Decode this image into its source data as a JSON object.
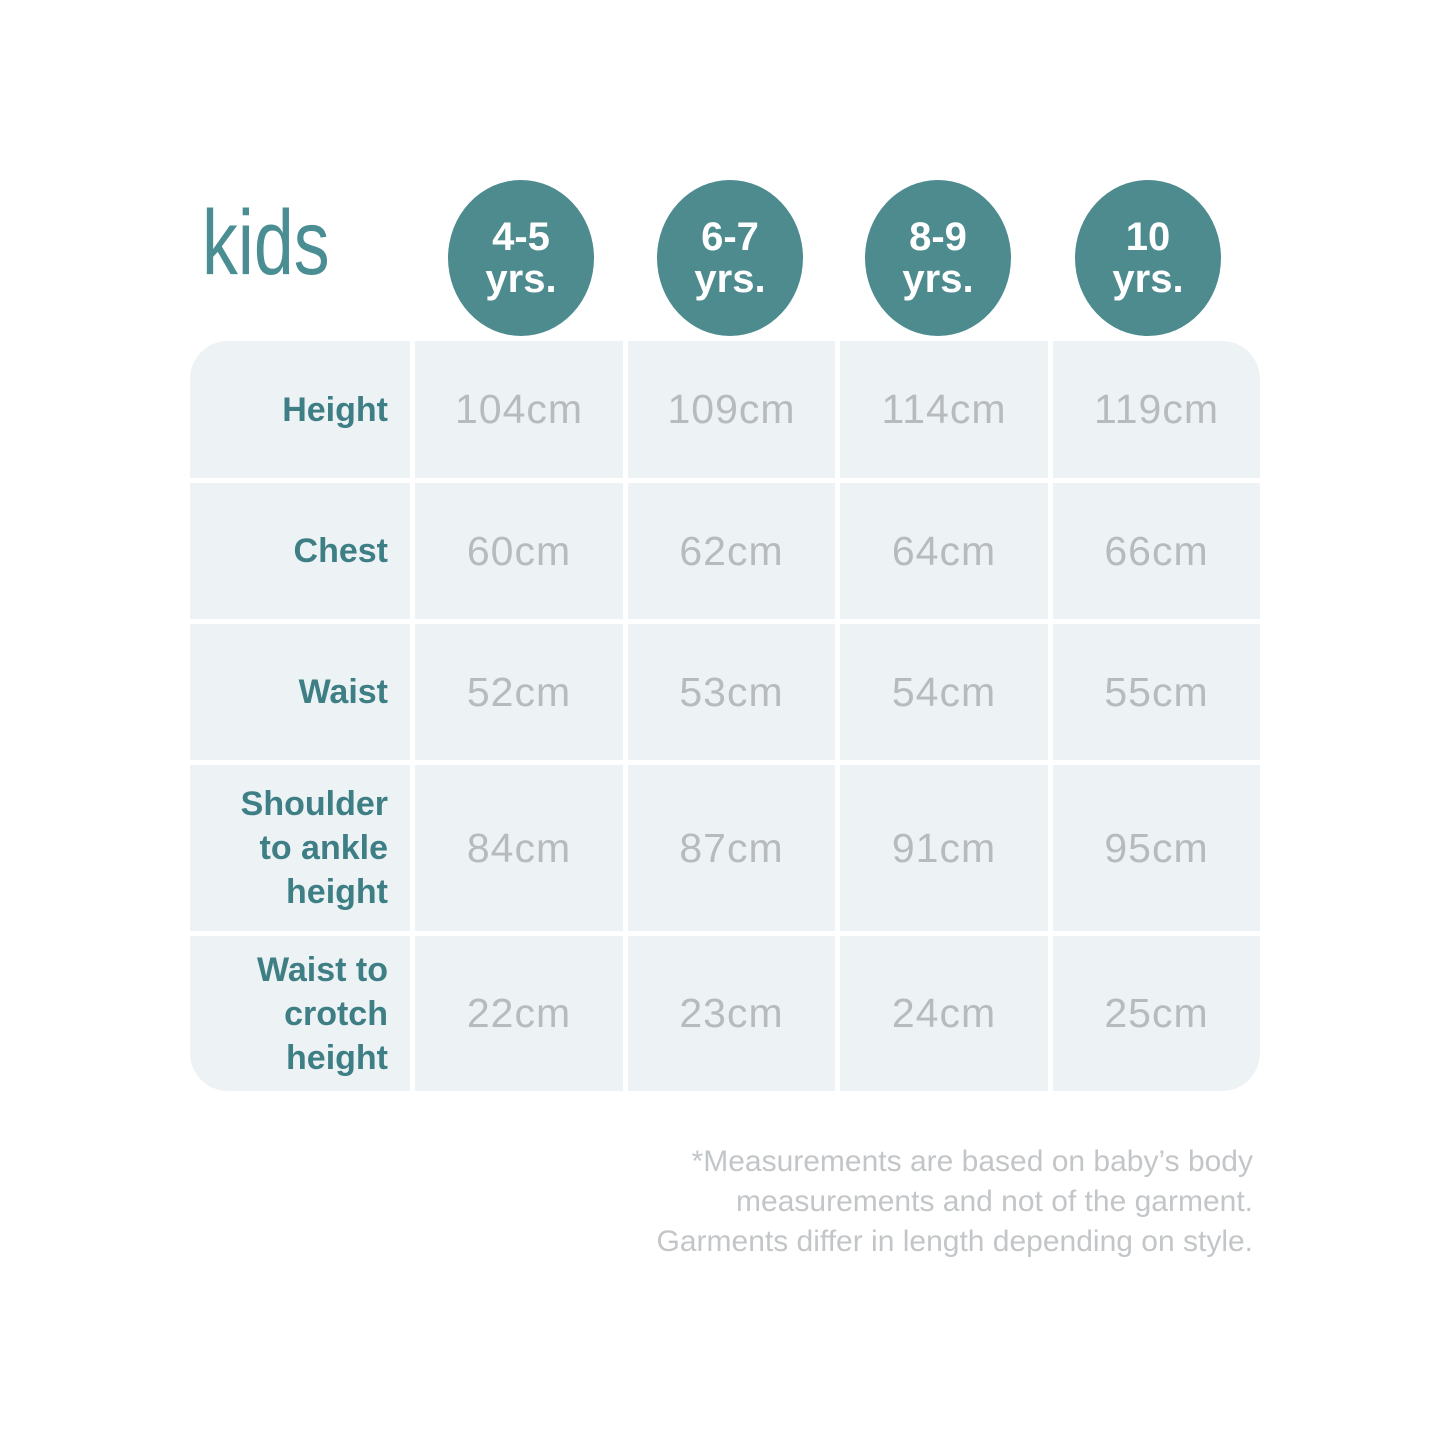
{
  "chart_data": {
    "type": "table",
    "title": "kids",
    "column_headers": [
      {
        "line1": "4-5",
        "line2": "yrs."
      },
      {
        "line1": "6-7",
        "line2": "yrs."
      },
      {
        "line1": "8-9",
        "line2": "yrs."
      },
      {
        "line1": "10",
        "line2": "yrs."
      }
    ],
    "rows": [
      {
        "label": "Height",
        "label_lines": [
          "Height"
        ],
        "values": [
          "104cm",
          "109cm",
          "114cm",
          "119cm"
        ]
      },
      {
        "label": "Chest",
        "label_lines": [
          "Chest"
        ],
        "values": [
          "60cm",
          "62cm",
          "64cm",
          "66cm"
        ]
      },
      {
        "label": "Waist",
        "label_lines": [
          "Waist"
        ],
        "values": [
          "52cm",
          "53cm",
          "54cm",
          "55cm"
        ]
      },
      {
        "label": "Shoulder to ankle height",
        "label_lines": [
          "Shoulder",
          "to ankle",
          "height"
        ],
        "values": [
          "84cm",
          "87cm",
          "91cm",
          "95cm"
        ]
      },
      {
        "label": "Waist to crotch height",
        "label_lines": [
          "Waist to",
          "crotch",
          "height"
        ],
        "values": [
          "22cm",
          "23cm",
          "24cm",
          "25cm"
        ]
      }
    ],
    "footnote_lines": [
      "*Measurements are based on baby’s body",
      "measurements and not of the garment.",
      "Garments differ in length depending on style."
    ]
  },
  "colors": {
    "background": "#ffffff",
    "badge": "#4d8b8f",
    "title": "#4a8e93",
    "label": "#3e7e85",
    "value": "#b7bbbe",
    "cell_bg": "#edf2f5",
    "footnote": "#c3c6c8"
  }
}
